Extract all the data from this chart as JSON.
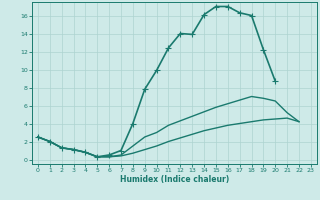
{
  "xlabel": "Humidex (Indice chaleur)",
  "bg_color": "#ceeae8",
  "line_color": "#1a7a6e",
  "grid_color": "#aed4d0",
  "xlim": [
    -0.5,
    23.5
  ],
  "ylim": [
    -0.5,
    17.5
  ],
  "xticks": [
    0,
    1,
    2,
    3,
    4,
    5,
    6,
    7,
    8,
    9,
    10,
    11,
    12,
    13,
    14,
    15,
    16,
    17,
    18,
    19,
    20,
    21,
    22,
    23
  ],
  "yticks": [
    0,
    2,
    4,
    6,
    8,
    10,
    12,
    14,
    16
  ],
  "series": [
    {
      "y": [
        2.5,
        2.0,
        1.3,
        1.1,
        0.8,
        0.3,
        0.5,
        1.0,
        4.0,
        7.8,
        9.9,
        12.4,
        14.0,
        13.9,
        16.1,
        17.0,
        17.0,
        16.3,
        16.0,
        12.2,
        8.7,
        null,
        null,
        null
      ],
      "marker": "+",
      "markersize": 4,
      "linewidth": 1.2
    },
    {
      "y": [
        2.5,
        2.0,
        1.3,
        1.1,
        0.8,
        0.3,
        0.3,
        0.5,
        1.5,
        2.5,
        3.0,
        3.8,
        4.3,
        4.8,
        5.3,
        5.8,
        6.2,
        6.6,
        7.0,
        6.8,
        6.5,
        5.2,
        4.2,
        null
      ],
      "marker": null,
      "markersize": 0,
      "linewidth": 1.0
    },
    {
      "y": [
        2.5,
        2.0,
        1.3,
        1.1,
        0.8,
        0.3,
        0.3,
        0.4,
        0.7,
        1.1,
        1.5,
        2.0,
        2.4,
        2.8,
        3.2,
        3.5,
        3.8,
        4.0,
        4.2,
        4.4,
        4.5,
        4.6,
        4.2,
        null
      ],
      "marker": null,
      "markersize": 0,
      "linewidth": 1.0
    }
  ]
}
